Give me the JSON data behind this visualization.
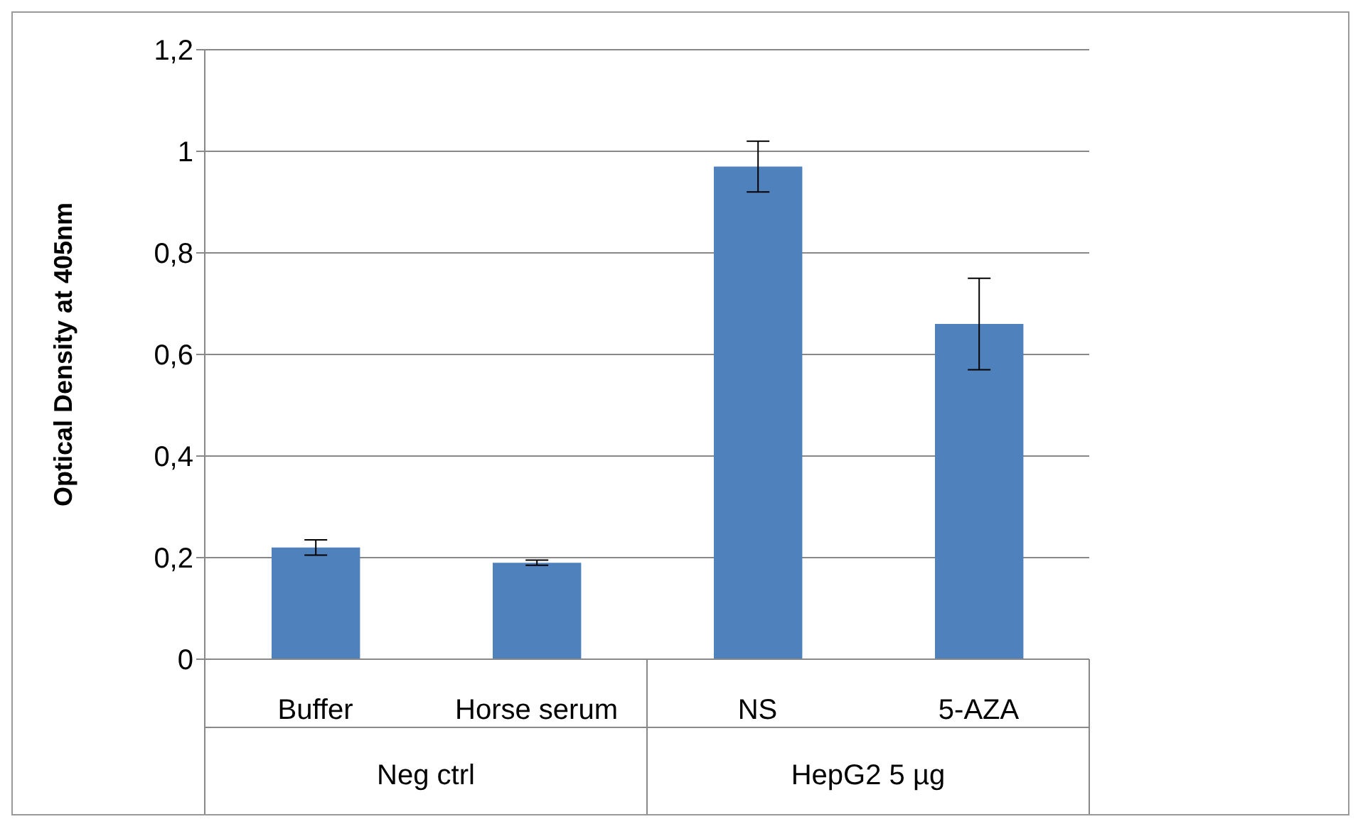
{
  "chart_data": {
    "type": "bar",
    "ylabel": "Optical Density at 405nm",
    "categories": [
      "Buffer",
      "Horse serum",
      "NS",
      "5-AZA"
    ],
    "values": [
      0.22,
      0.19,
      0.97,
      0.66
    ],
    "errors": [
      0.015,
      0.005,
      0.05,
      0.09
    ],
    "color": "#4f81bd",
    "ylim": [
      0,
      1.2
    ],
    "yticks": [
      0,
      {
        "value": 0.2,
        "label": "0,2"
      },
      {
        "value": 0.4,
        "label": "0,4"
      },
      {
        "value": 0.6,
        "label": "0,6"
      },
      {
        "value": 0.8,
        "label": "0,8"
      },
      1,
      {
        "value": 1.2,
        "label": "1,2"
      }
    ],
    "grid": "y",
    "annotations": [
      "Neg ctrl",
      "HepG2 5 µg"
    ]
  }
}
